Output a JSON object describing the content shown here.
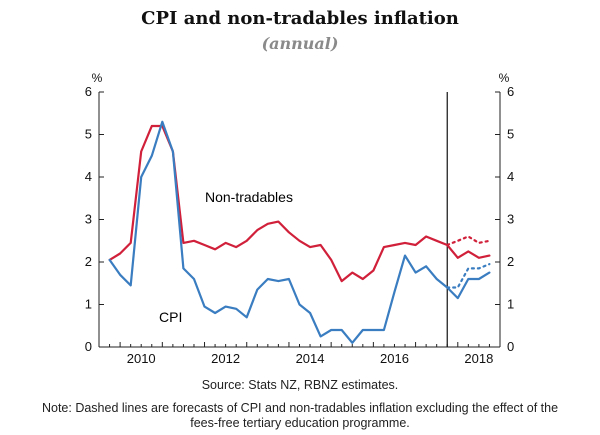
{
  "chart_data": {
    "type": "line",
    "title": "CPI and non-tradables inflation",
    "subtitle": "(annual)",
    "y_unit_left": "%",
    "y_unit_right": "%",
    "ylim": [
      0,
      6
    ],
    "yticks": [
      "0",
      "1",
      "2",
      "3",
      "4",
      "5",
      "6"
    ],
    "x_range": [
      2009.5,
      2019.0
    ],
    "x_ticks": [
      {
        "value": 2010,
        "label": "2010"
      },
      {
        "value": 2012,
        "label": "2012"
      },
      {
        "value": 2014,
        "label": "2014"
      },
      {
        "value": 2016,
        "label": "2016"
      },
      {
        "value": 2018,
        "label": "2018"
      }
    ],
    "forecast_start": 2017.75,
    "series": [
      {
        "name": "Non-tradables",
        "label": "Non-tradables",
        "color": "#d0203a",
        "x": [
          2009.75,
          2010.0,
          2010.25,
          2010.5,
          2010.75,
          2011.0,
          2011.25,
          2011.5,
          2011.75,
          2012.0,
          2012.25,
          2012.5,
          2012.75,
          2013.0,
          2013.25,
          2013.5,
          2013.75,
          2014.0,
          2014.25,
          2014.5,
          2014.75,
          2015.0,
          2015.25,
          2015.5,
          2015.75,
          2016.0,
          2016.25,
          2016.5,
          2016.75,
          2017.0,
          2017.25,
          2017.5,
          2017.75,
          2018.0,
          2018.25,
          2018.5,
          2018.75
        ],
        "values": [
          2.05,
          2.2,
          2.45,
          4.6,
          5.2,
          5.2,
          4.6,
          2.45,
          2.5,
          2.4,
          2.3,
          2.45,
          2.35,
          2.5,
          2.75,
          2.9,
          2.95,
          2.7,
          2.5,
          2.35,
          2.4,
          2.05,
          1.55,
          1.75,
          1.6,
          1.8,
          2.35,
          2.4,
          2.45,
          2.4,
          2.6,
          2.5,
          2.4,
          2.1,
          2.25,
          2.1,
          2.15
        ]
      },
      {
        "name": "CPI",
        "label": "CPI",
        "color": "#3a7dc0",
        "x": [
          2009.75,
          2010.0,
          2010.25,
          2010.5,
          2010.75,
          2011.0,
          2011.25,
          2011.5,
          2011.75,
          2012.0,
          2012.25,
          2012.5,
          2012.75,
          2013.0,
          2013.25,
          2013.5,
          2013.75,
          2014.0,
          2014.25,
          2014.5,
          2014.75,
          2015.0,
          2015.25,
          2015.5,
          2015.75,
          2016.0,
          2016.25,
          2016.5,
          2016.75,
          2017.0,
          2017.25,
          2017.5,
          2017.75,
          2018.0,
          2018.25,
          2018.5,
          2018.75
        ],
        "values": [
          2.05,
          1.7,
          1.45,
          4.0,
          4.5,
          5.3,
          4.6,
          1.85,
          1.6,
          0.95,
          0.8,
          0.95,
          0.9,
          0.7,
          1.35,
          1.6,
          1.55,
          1.6,
          1.0,
          0.8,
          0.25,
          0.4,
          0.4,
          0.1,
          0.4,
          0.4,
          0.4,
          1.3,
          2.15,
          1.75,
          1.9,
          1.6,
          1.4,
          1.15,
          1.6,
          1.6,
          1.75
        ]
      },
      {
        "name": "Non-tradables forecast (excl. fees-free effect)",
        "color": "#d0203a",
        "dashed": true,
        "x": [
          2017.75,
          2018.0,
          2018.25,
          2018.5,
          2018.75
        ],
        "values": [
          2.4,
          2.5,
          2.6,
          2.45,
          2.5
        ]
      },
      {
        "name": "CPI forecast (excl. fees-free effect)",
        "color": "#3a7dc0",
        "dashed": true,
        "x": [
          2017.75,
          2018.0,
          2018.25,
          2018.5,
          2018.75
        ],
        "values": [
          1.4,
          1.4,
          1.85,
          1.85,
          1.95
        ]
      }
    ],
    "source": "Source: Stats NZ, RBNZ estimates.",
    "note_line1": "Note: Dashed lines are forecasts of CPI and non-tradables inflation excluding the effect of the",
    "note_line2": "fees-free tertiary education programme."
  }
}
